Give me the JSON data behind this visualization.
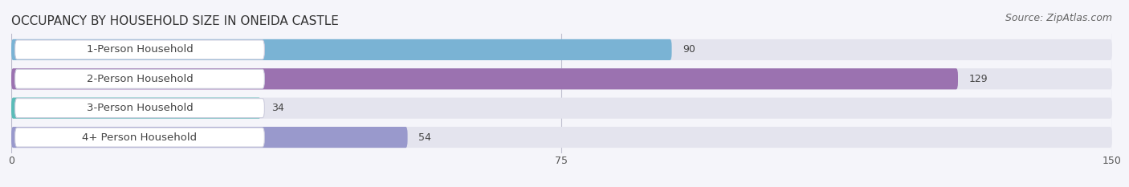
{
  "title": "OCCUPANCY BY HOUSEHOLD SIZE IN ONEIDA CASTLE",
  "source": "Source: ZipAtlas.com",
  "categories": [
    "1-Person Household",
    "2-Person Household",
    "3-Person Household",
    "4+ Person Household"
  ],
  "values": [
    90,
    129,
    34,
    54
  ],
  "bar_colors": [
    "#7ab3d4",
    "#9b72b0",
    "#5bbcb8",
    "#9999cc"
  ],
  "bar_bg_color": "#e4e4ee",
  "label_bg_color": "#ffffff",
  "xlim": [
    0,
    150
  ],
  "xticks": [
    0,
    75,
    150
  ],
  "title_fontsize": 11,
  "source_fontsize": 9,
  "bar_label_fontsize": 9,
  "category_fontsize": 9.5,
  "background_color": "#f5f5fa"
}
